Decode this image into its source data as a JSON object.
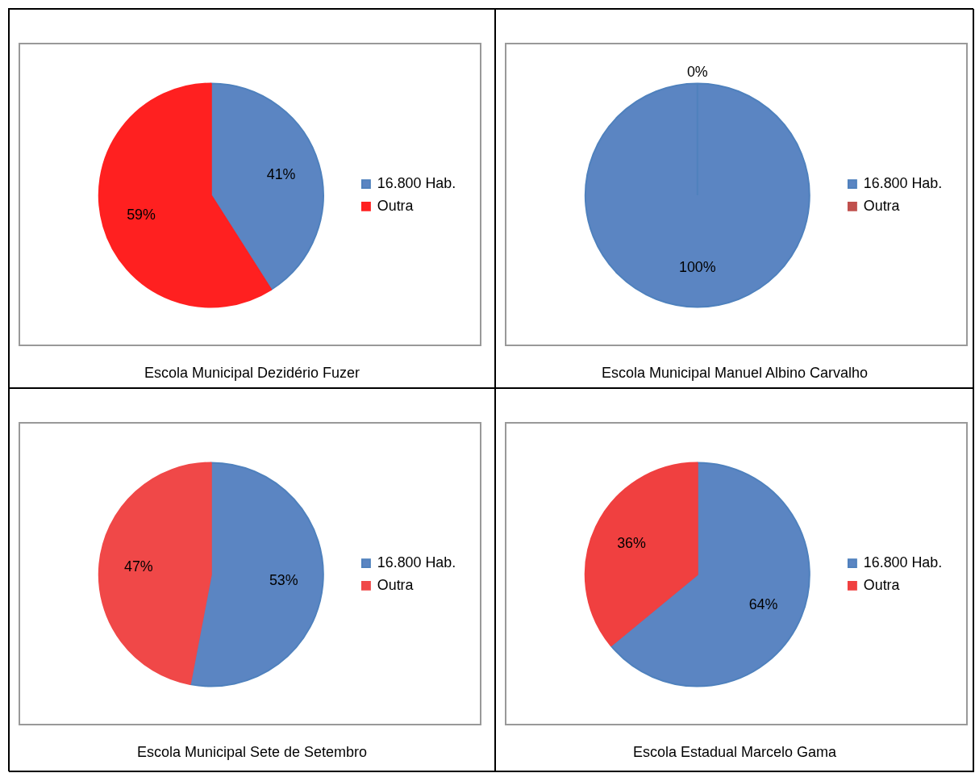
{
  "chart_data": [
    {
      "type": "pie",
      "title": "Escola Municipal Dezidério Fuzer",
      "categories": [
        "16.800 Hab.",
        "Outra"
      ],
      "values": [
        41,
        59
      ],
      "value_labels": [
        "41%",
        "59%"
      ],
      "colors": [
        "#5b85c2",
        "#ff2020"
      ],
      "legend": "right"
    },
    {
      "type": "pie",
      "title": "Escola Municipal Manuel Albino Carvalho",
      "categories": [
        "16.800 Hab.",
        "Outra"
      ],
      "values": [
        100,
        0
      ],
      "value_labels": [
        "100%",
        "0%"
      ],
      "colors": [
        "#5b85c2",
        "#c0504d"
      ],
      "legend": "right"
    },
    {
      "type": "pie",
      "title": "Escola Municipal Sete de Setembro",
      "categories": [
        "16.800 Hab.",
        "Outra"
      ],
      "values": [
        53,
        47
      ],
      "value_labels": [
        "53%",
        "47%"
      ],
      "colors": [
        "#5b85c2",
        "#f04848"
      ],
      "legend": "right"
    },
    {
      "type": "pie",
      "title": "Escola Estadual Marcelo Gama",
      "categories": [
        "16.800 Hab.",
        "Outra"
      ],
      "values": [
        64,
        36
      ],
      "value_labels": [
        "64%",
        "36%"
      ],
      "colors": [
        "#5b85c2",
        "#f04040"
      ],
      "legend": "right"
    }
  ]
}
